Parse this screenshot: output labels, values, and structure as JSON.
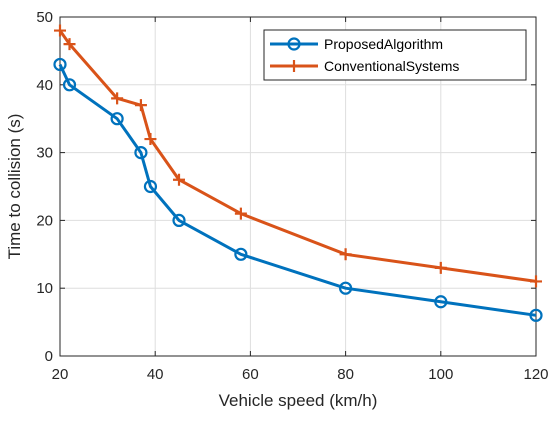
{
  "chart_data": {
    "type": "line",
    "title": "",
    "xlabel": "Vehicle speed (km/h)",
    "ylabel": "Time to collision (s)",
    "xlim": [
      20,
      120
    ],
    "ylim": [
      0,
      50
    ],
    "xticks": [
      20,
      40,
      60,
      80,
      100,
      120
    ],
    "yticks": [
      0,
      10,
      20,
      30,
      40,
      50
    ],
    "grid": true,
    "legend_position": "top-right",
    "series": [
      {
        "name": "ProposedAlgorithm",
        "color": "#0072BD",
        "marker": "circle",
        "x": [
          20,
          22,
          32,
          37,
          39,
          45,
          58,
          80,
          100,
          120
        ],
        "y": [
          43,
          40,
          35,
          30,
          25,
          20,
          15,
          10,
          8,
          6
        ]
      },
      {
        "name": "ConventionalSystems",
        "color": "#D95319",
        "marker": "plus",
        "x": [
          20,
          22,
          32,
          37,
          39,
          45,
          58,
          80,
          100,
          120
        ],
        "y": [
          48,
          46,
          38,
          37,
          32,
          26,
          21,
          15,
          13,
          11
        ]
      }
    ]
  }
}
